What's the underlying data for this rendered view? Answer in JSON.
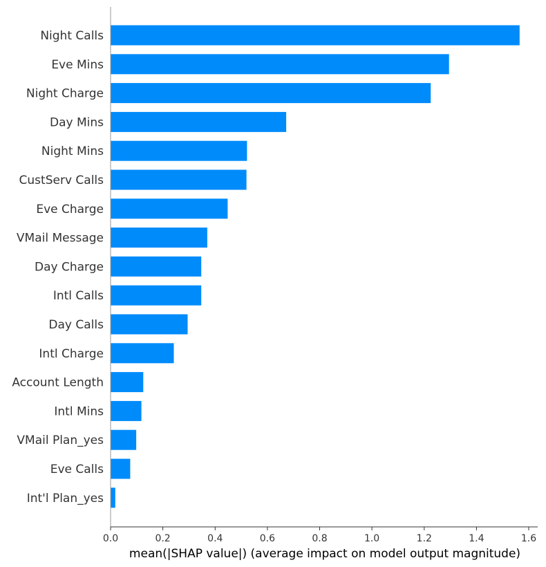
{
  "chart_data": {
    "type": "bar",
    "orientation": "horizontal",
    "categories": [
      "Night Calls",
      "Eve Mins",
      "Night Charge",
      "Day Mins",
      "Night Mins",
      "CustServ Calls",
      "Eve Charge",
      "VMail Message",
      "Day Charge",
      "Intl Calls",
      "Day Calls",
      "Intl Charge",
      "Account Length",
      "Intl Mins",
      "VMail Plan_yes",
      "Eve Calls",
      "Int'l Plan_yes"
    ],
    "values": [
      1.565,
      1.295,
      1.225,
      0.672,
      0.522,
      0.52,
      0.448,
      0.37,
      0.347,
      0.347,
      0.295,
      0.242,
      0.125,
      0.118,
      0.098,
      0.075,
      0.018
    ],
    "xlabel": "mean(|SHAP value|) (average impact on model output magnitude)",
    "ylabel": "",
    "title": "",
    "xlim": [
      0,
      1.65
    ],
    "xticks": [
      "0.0",
      "0.2",
      "0.4",
      "0.6",
      "0.8",
      "1.0",
      "1.2",
      "1.4",
      "1.6"
    ],
    "grid": false,
    "bar_color": "#008bfb"
  }
}
